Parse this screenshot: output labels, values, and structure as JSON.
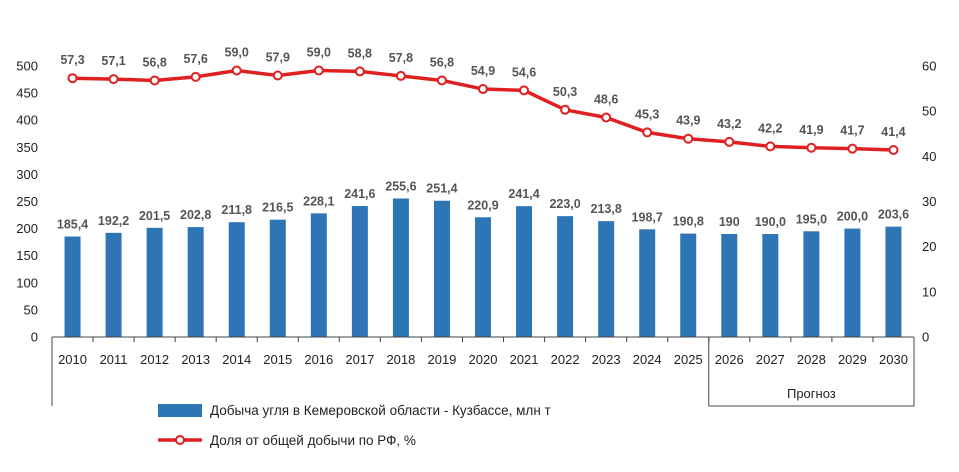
{
  "chart_data": {
    "type": "bar",
    "categories": [
      "2010",
      "2011",
      "2012",
      "2013",
      "2014",
      "2015",
      "2016",
      "2017",
      "2018",
      "2019",
      "2020",
      "2021",
      "2022",
      "2023",
      "2024",
      "2025",
      "2026",
      "2027",
      "2028",
      "2029",
      "2030"
    ],
    "series": [
      {
        "name": "Добыча угля в Кемеровской области - Кузбассе, млн т",
        "type": "bar",
        "axis": "left",
        "color": "#2e75b6",
        "values": [
          185.4,
          192.2,
          201.5,
          202.8,
          211.8,
          216.5,
          228.1,
          241.6,
          255.6,
          251.4,
          220.9,
          241.4,
          223.0,
          213.8,
          198.7,
          190.8,
          190,
          190.0,
          195.0,
          200.0,
          203.6
        ],
        "labels": [
          "185,4",
          "192,2",
          "201,5",
          "202,8",
          "211,8",
          "216,5",
          "228,1",
          "241,6",
          "255,6",
          "251,4",
          "220,9",
          "241,4",
          "223,0",
          "213,8",
          "198,7",
          "190,8",
          "190",
          "190,0",
          "195,0",
          "200,0",
          "203,6"
        ]
      },
      {
        "name": "Доля от общей добычи по РФ, %",
        "type": "line",
        "axis": "right",
        "color": "#e02020",
        "values": [
          57.3,
          57.1,
          56.8,
          57.6,
          59.0,
          57.9,
          59.0,
          58.8,
          57.8,
          56.8,
          54.9,
          54.6,
          50.3,
          48.6,
          45.3,
          43.9,
          43.2,
          42.2,
          41.9,
          41.7,
          41.4
        ],
        "labels": [
          "57,3",
          "57,1",
          "56,8",
          "57,6",
          "59,0",
          "57,9",
          "59,0",
          "58,8",
          "57,8",
          "56,8",
          "54,9",
          "54,6",
          "50,3",
          "48,6",
          "45,3",
          "43,9",
          "43,2",
          "42,2",
          "41,9",
          "41,7",
          "41,4"
        ]
      }
    ],
    "y_left": {
      "min": 0,
      "max": 500,
      "ticks": [
        "0",
        "50",
        "100",
        "150",
        "200",
        "250",
        "300",
        "350",
        "400",
        "450",
        "500"
      ]
    },
    "y_right": {
      "min": 0,
      "max": 60,
      "ticks": [
        "0",
        "10",
        "20",
        "30",
        "40",
        "50",
        "60"
      ]
    },
    "forecast_label": "Прогноз",
    "forecast_start": "2026",
    "grid": false,
    "legend_position": "bottom"
  }
}
